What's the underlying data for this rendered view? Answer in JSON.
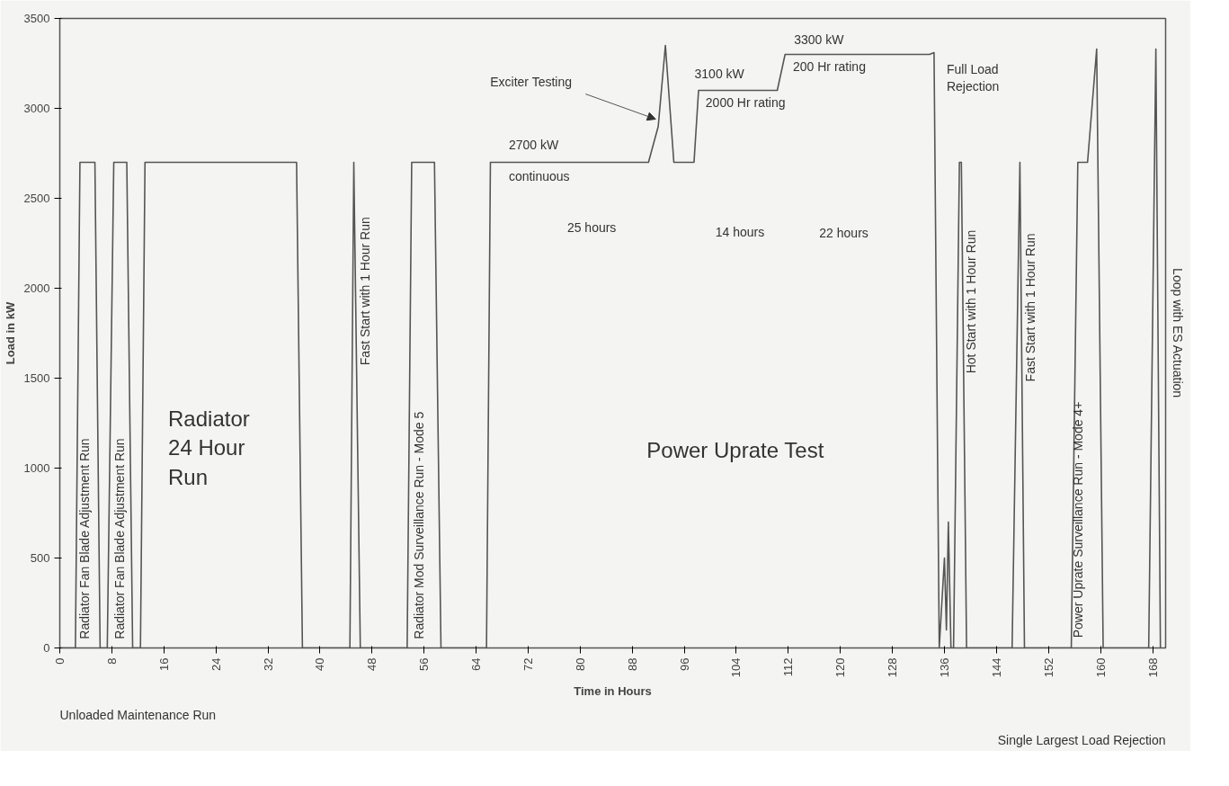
{
  "chart_data": {
    "type": "line",
    "xlabel": "Time in Hours",
    "ylabel": "Load in kW",
    "x": [
      0,
      2.4,
      3.1,
      5.4,
      6.2,
      7.3,
      8.3,
      10.3,
      11.2,
      12.4,
      13.1,
      36.4,
      37.3,
      44.6,
      45.2,
      46.2,
      53.4,
      54.1,
      57.6,
      58.6,
      65.6,
      66.2,
      90.5,
      92.0,
      93.1,
      94.4,
      97.5,
      98.2,
      110.3,
      111.5,
      133.7,
      134.4,
      135.2,
      136.0,
      136.3,
      136.6,
      137.0,
      137.4,
      138.3,
      138.6,
      139.4,
      146.4,
      147.6,
      148.3,
      155.5,
      156.5,
      158.0,
      159.4,
      160.4,
      167.4,
      168.5,
      169.2
    ],
    "series": [
      {
        "color": "#555555",
        "values": [
          0,
          0,
          2700,
          2700,
          0,
          0,
          2700,
          2700,
          0,
          0,
          2700,
          2700,
          0,
          0,
          2700,
          0,
          0,
          2700,
          2700,
          0,
          0,
          2700,
          2700,
          2900,
          3350,
          2700,
          2700,
          3100,
          3100,
          3300,
          3300,
          3310,
          0,
          500,
          100,
          700,
          0,
          0,
          2700,
          2700,
          0,
          0,
          2700,
          0,
          0,
          2700,
          2700,
          3330,
          0,
          0,
          3330,
          0
        ]
      }
    ],
    "xlim": [
      0,
      170
    ],
    "ylim": [
      0,
      3500
    ],
    "xticks": [
      0,
      8,
      16,
      24,
      32,
      40,
      48,
      56,
      64,
      72,
      80,
      88,
      96,
      104,
      112,
      120,
      128,
      136,
      144,
      152,
      160,
      168
    ],
    "yticks": [
      0,
      500,
      1000,
      1500,
      2000,
      2500,
      3000,
      3500
    ],
    "grid": false,
    "annotations": [
      "Radiator Fan Blade Adjustment Run",
      "Radiator Fan Blade Adjustment Run",
      "Radiator\n24 Hour\nRun",
      "Fast Start with 1 Hour Run",
      "Radiator Mod Surveillance Run - Mode 5",
      "2700 kW",
      "continuous",
      {
        "text": "Exciter Testing",
        "x": 91.6,
        "y": 2940
      },
      "3100 kW",
      "2000 Hr rating",
      "3300 kW",
      "200 Hr rating",
      "Full Load\nRejection",
      "25 hours",
      "14 hours",
      "22 hours",
      "Power Uprate Test",
      "Hot Start with 1 Hour Run",
      "Fast Start with 1 Hour Run",
      "Power Uprate Surveillance Run - Mode 4+",
      "Loop with ES Actuation",
      "Unloaded Maintenance Run",
      "Single Largest Load Rejection"
    ]
  }
}
